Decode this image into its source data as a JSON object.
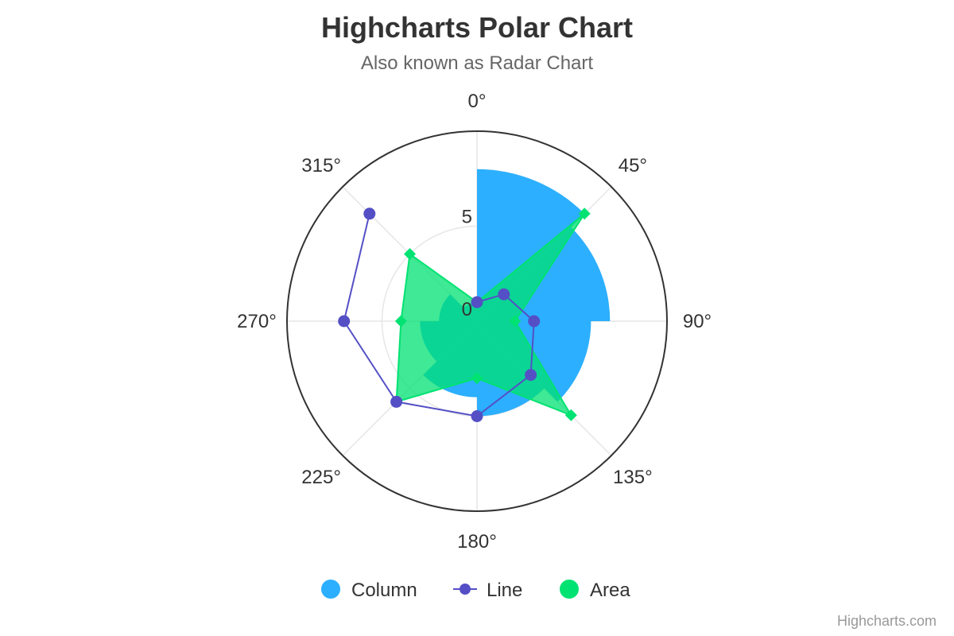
{
  "chart_data": {
    "type": "polar",
    "title": "Highcharts Polar Chart",
    "subtitle": "Also known as Radar Chart",
    "x_axis": {
      "min": 0,
      "max": 360,
      "tick_interval": 45,
      "tick_labels": [
        "0°",
        "45°",
        "90°",
        "135°",
        "180°",
        "225°",
        "270°",
        "315°"
      ]
    },
    "y_axis": {
      "min": 0,
      "max": 10,
      "tick_labels": [
        "0",
        "5"
      ]
    },
    "grid": true,
    "legend_position": "bottom-center",
    "series": [
      {
        "name": "Column",
        "type": "column",
        "color": "#2caffe",
        "pointStart": 0,
        "pointInterval": 45,
        "values": [
          8,
          7,
          6,
          5,
          4,
          3,
          2,
          1
        ]
      },
      {
        "name": "Line",
        "type": "line",
        "color": "#544fc5",
        "pointStart": 0,
        "pointInterval": 45,
        "values": [
          1,
          2,
          3,
          4,
          5,
          6,
          7,
          8
        ]
      },
      {
        "name": "Area",
        "type": "area",
        "color": "#00e272",
        "pointStart": 0,
        "pointInterval": 45,
        "values": [
          1,
          8,
          2,
          7,
          3,
          6,
          4,
          5
        ]
      }
    ]
  },
  "credits": "Highcharts.com"
}
